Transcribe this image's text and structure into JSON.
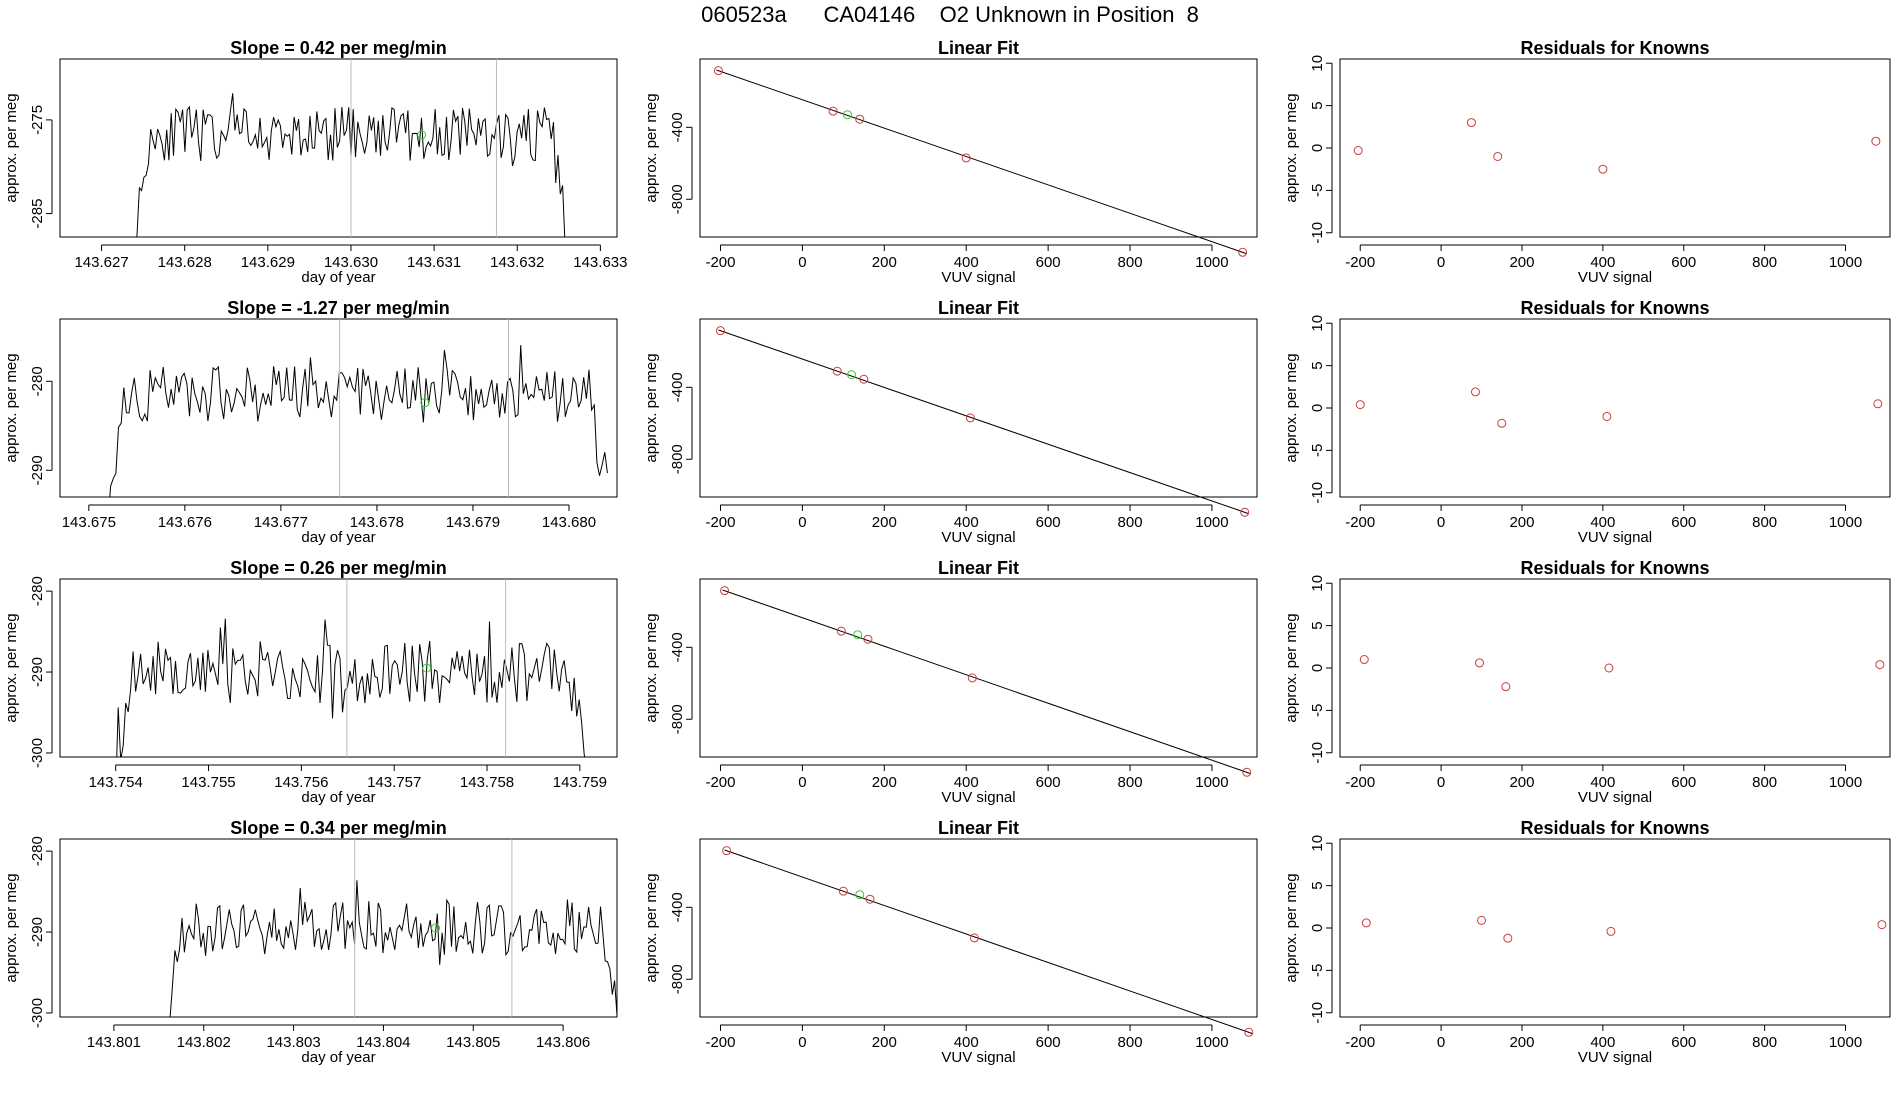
{
  "page_title": {
    "run": "060523a",
    "tank": "CA04146",
    "desc": "O2 Unknown in Position  8"
  },
  "labels": {
    "time_xlabel": "day of year",
    "ylabel": "approx. per meg",
    "fit_title": "Linear Fit",
    "fit_xlabel": "VUV signal",
    "resid_title": "Residuals for Knowns",
    "resid_xlabel": "VUV signal"
  },
  "colors": {
    "line": "#000000",
    "known": "#cd3b3b",
    "unknown": "#33cc33",
    "vline": "#bbbbbb",
    "frame": "#000000"
  },
  "chart_data": [
    {
      "row": 1,
      "time": {
        "type": "line",
        "title": "Slope =  0.42  per meg/min",
        "xlabel": "day of year",
        "ylabel": "approx. per meg",
        "xlim": [
          143.6265,
          143.6332
        ],
        "ylim": [
          -287.5,
          -268.5
        ],
        "xticks": [
          "143.627",
          "143.628",
          "143.629",
          "143.630",
          "143.631",
          "143.632",
          "143.633"
        ],
        "yticks": [
          -285,
          -275
        ],
        "start": 143.6274,
        "end": 143.6326,
        "base": -276.5,
        "amp": 1.8,
        "seed": 11,
        "vlines": [
          143.63,
          143.63175
        ],
        "marker": {
          "x": 143.63085,
          "y": -276.6
        }
      },
      "fit": {
        "type": "scatter",
        "title": "Linear Fit",
        "xlabel": "VUV signal",
        "ylabel": "approx. per meg",
        "xlim": [
          -250,
          1110
        ],
        "ylim": [
          -1010,
          -20
        ],
        "xticks": [
          -200,
          0,
          200,
          400,
          600,
          800,
          1000
        ],
        "yticks": [
          -800,
          -400
        ],
        "knowns": [
          [
            -205,
            -85
          ],
          [
            75,
            -310
          ],
          [
            140,
            -355
          ],
          [
            400,
            -570
          ],
          [
            1075,
            -1095
          ]
        ],
        "unknown": [
          110,
          -330
        ],
        "line": [
          [
            -210,
            -81
          ],
          [
            1085,
            -1103
          ]
        ]
      },
      "resid": {
        "type": "scatter",
        "title": "Residuals for Knowns",
        "xlabel": "VUV signal",
        "ylabel": "approx. per meg",
        "xlim": [
          -250,
          1110
        ],
        "ylim": [
          -10.5,
          10.5
        ],
        "xticks": [
          -200,
          0,
          200,
          400,
          600,
          800,
          1000
        ],
        "yticks": [
          -10,
          -5,
          0,
          5,
          10
        ],
        "points": [
          [
            -205,
            -0.3
          ],
          [
            75,
            3.0
          ],
          [
            140,
            -1.0
          ],
          [
            400,
            -2.5
          ],
          [
            1075,
            0.8
          ]
        ]
      }
    },
    {
      "row": 2,
      "time": {
        "type": "line",
        "title": "Slope =  -1.27  per meg/min",
        "xlabel": "day of year",
        "ylabel": "approx. per meg",
        "xlim": [
          143.6747,
          143.6805
        ],
        "ylim": [
          -293,
          -273
        ],
        "xticks": [
          "143.675",
          "143.676",
          "143.677",
          "143.678",
          "143.679",
          "143.680"
        ],
        "yticks": [
          -290,
          -280
        ],
        "start": 143.6752,
        "end": 143.6804,
        "base": -281.5,
        "amp": 2.0,
        "seed": 23,
        "vlines": [
          143.67761,
          143.67937
        ],
        "marker": {
          "x": 143.6785,
          "y": -282.4
        }
      },
      "fit": {
        "type": "scatter",
        "title": "Linear Fit",
        "xlabel": "VUV signal",
        "ylabel": "approx. per meg",
        "xlim": [
          -250,
          1110
        ],
        "ylim": [
          -1010,
          -20
        ],
        "xticks": [
          -200,
          0,
          200,
          400,
          600,
          800,
          1000
        ],
        "yticks": [
          -800,
          -400
        ],
        "knowns": [
          [
            -200,
            -85
          ],
          [
            85,
            -310
          ],
          [
            150,
            -355
          ],
          [
            410,
            -570
          ],
          [
            1080,
            -1095
          ]
        ],
        "unknown": [
          120,
          -330
        ],
        "line": [
          [
            -205,
            -81
          ],
          [
            1090,
            -1103
          ]
        ]
      },
      "resid": {
        "type": "scatter",
        "title": "Residuals for Knowns",
        "xlabel": "VUV signal",
        "ylabel": "approx. per meg",
        "xlim": [
          -250,
          1110
        ],
        "ylim": [
          -10.5,
          10.5
        ],
        "xticks": [
          -200,
          0,
          200,
          400,
          600,
          800,
          1000
        ],
        "yticks": [
          -10,
          -5,
          0,
          5,
          10
        ],
        "points": [
          [
            -200,
            0.4
          ],
          [
            85,
            1.9
          ],
          [
            150,
            -1.8
          ],
          [
            410,
            -1.0
          ],
          [
            1080,
            0.5
          ]
        ]
      }
    },
    {
      "row": 3,
      "time": {
        "type": "line",
        "title": "Slope =  0.26  per meg/min",
        "xlabel": "day of year",
        "ylabel": "approx. per meg",
        "xlim": [
          143.7534,
          143.7594
        ],
        "ylim": [
          -300.5,
          -278.5
        ],
        "xticks": [
          "143.754",
          "143.755",
          "143.756",
          "143.757",
          "143.758",
          "143.759"
        ],
        "yticks": [
          -300,
          -290,
          -280
        ],
        "start": 143.754,
        "end": 143.7591,
        "base": -290.0,
        "amp": 2.4,
        "seed": 37,
        "vlines": [
          143.75649,
          143.7582
        ],
        "marker": {
          "x": 143.75735,
          "y": -289.5
        }
      },
      "fit": {
        "type": "scatter",
        "title": "Linear Fit",
        "xlabel": "VUV signal",
        "ylabel": "approx. per meg",
        "xlim": [
          -250,
          1110
        ],
        "ylim": [
          -1010,
          -20
        ],
        "xticks": [
          -200,
          0,
          200,
          400,
          600,
          800,
          1000
        ],
        "yticks": [
          -800,
          -400
        ],
        "knowns": [
          [
            -190,
            -85
          ],
          [
            95,
            -310
          ],
          [
            160,
            -355
          ],
          [
            415,
            -570
          ],
          [
            1085,
            -1095
          ]
        ],
        "unknown": [
          135,
          -330
        ],
        "line": [
          [
            -195,
            -81
          ],
          [
            1095,
            -1103
          ]
        ]
      },
      "resid": {
        "type": "scatter",
        "title": "Residuals for Knowns",
        "xlabel": "VUV signal",
        "ylabel": "approx. per meg",
        "xlim": [
          -250,
          1110
        ],
        "ylim": [
          -10.5,
          10.5
        ],
        "xticks": [
          -200,
          0,
          200,
          400,
          600,
          800,
          1000
        ],
        "yticks": [
          -10,
          -5,
          0,
          5,
          10
        ],
        "points": [
          [
            -190,
            1.0
          ],
          [
            95,
            0.6
          ],
          [
            160,
            -2.2
          ],
          [
            415,
            0.0
          ],
          [
            1085,
            0.4
          ]
        ]
      }
    },
    {
      "row": 4,
      "time": {
        "type": "line",
        "title": "Slope =  0.34  per meg/min",
        "xlabel": "day of year",
        "ylabel": "approx. per meg",
        "xlim": [
          143.8004,
          143.8066
        ],
        "ylim": [
          -300.5,
          -278.5
        ],
        "xticks": [
          "143.801",
          "143.802",
          "143.803",
          "143.804",
          "143.805",
          "143.806"
        ],
        "yticks": [
          -300,
          -290,
          -280
        ],
        "start": 143.8016,
        "end": 143.8066,
        "base": -289.5,
        "amp": 2.2,
        "seed": 53,
        "vlines": [
          143.80368,
          143.80543
        ],
        "marker": {
          "x": 143.80458,
          "y": -289.5
        }
      },
      "fit": {
        "type": "scatter",
        "title": "Linear Fit",
        "xlabel": "VUV signal",
        "ylabel": "approx. per meg",
        "xlim": [
          -250,
          1110
        ],
        "ylim": [
          -1010,
          -20
        ],
        "xticks": [
          -200,
          0,
          200,
          400,
          600,
          800,
          1000
        ],
        "yticks": [
          -800,
          -400
        ],
        "knowns": [
          [
            -185,
            -85
          ],
          [
            100,
            -310
          ],
          [
            165,
            -355
          ],
          [
            420,
            -570
          ],
          [
            1090,
            -1095
          ]
        ],
        "unknown": [
          140,
          -330
        ],
        "line": [
          [
            -190,
            -81
          ],
          [
            1100,
            -1103
          ]
        ]
      },
      "resid": {
        "type": "scatter",
        "title": "Residuals for Knowns",
        "xlabel": "VUV signal",
        "ylabel": "approx. per meg",
        "xlim": [
          -250,
          1110
        ],
        "ylim": [
          -10.5,
          10.5
        ],
        "xticks": [
          -200,
          0,
          200,
          400,
          600,
          800,
          1000
        ],
        "yticks": [
          -10,
          -5,
          0,
          5,
          10
        ],
        "points": [
          [
            -185,
            0.6
          ],
          [
            100,
            0.9
          ],
          [
            165,
            -1.2
          ],
          [
            420,
            -0.4
          ],
          [
            1090,
            0.4
          ]
        ]
      }
    }
  ]
}
